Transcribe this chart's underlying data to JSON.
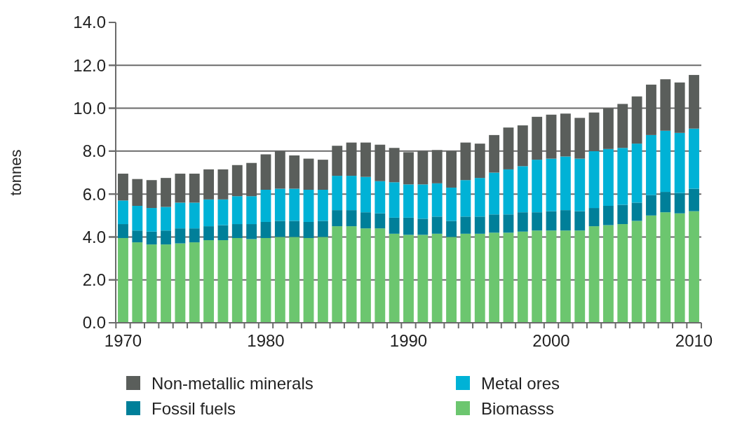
{
  "chart_data": {
    "type": "bar",
    "stacked": true,
    "ylabel": "tonnes",
    "categories": [
      "1970",
      null,
      null,
      null,
      null,
      null,
      null,
      null,
      null,
      null,
      "1980",
      null,
      null,
      null,
      null,
      null,
      null,
      null,
      null,
      null,
      "1990",
      null,
      null,
      null,
      null,
      null,
      null,
      null,
      null,
      null,
      "2000",
      null,
      null,
      null,
      null,
      null,
      null,
      null,
      null,
      null,
      "2010"
    ],
    "series": [
      {
        "name": "Biomasss",
        "color": "#6cc66f",
        "values": [
          3.95,
          3.75,
          3.65,
          3.65,
          3.7,
          3.75,
          3.85,
          3.85,
          3.95,
          3.9,
          3.95,
          4.0,
          4.0,
          3.95,
          4.0,
          4.5,
          4.5,
          4.4,
          4.4,
          4.15,
          4.1,
          4.1,
          4.15,
          4.0,
          4.15,
          4.15,
          4.2,
          4.2,
          4.25,
          4.3,
          4.3,
          4.3,
          4.3,
          4.5,
          4.55,
          4.6,
          4.75,
          5.0,
          5.15,
          5.1,
          5.2
        ]
      },
      {
        "name": "Fossil fuels",
        "color": "#007f99",
        "values": [
          0.65,
          0.55,
          0.6,
          0.65,
          0.7,
          0.65,
          0.65,
          0.7,
          0.65,
          0.7,
          0.75,
          0.75,
          0.75,
          0.75,
          0.75,
          0.75,
          0.75,
          0.75,
          0.7,
          0.75,
          0.8,
          0.75,
          0.8,
          0.75,
          0.8,
          0.8,
          0.85,
          0.85,
          0.9,
          0.85,
          0.9,
          0.95,
          0.9,
          0.85,
          0.9,
          0.9,
          0.85,
          0.95,
          0.95,
          0.95,
          1.05
        ]
      },
      {
        "name": "Metal ores",
        "color": "#00b2d6",
        "values": [
          1.1,
          1.15,
          1.1,
          1.1,
          1.2,
          1.2,
          1.25,
          1.2,
          1.3,
          1.3,
          1.5,
          1.5,
          1.5,
          1.5,
          1.45,
          1.6,
          1.6,
          1.65,
          1.5,
          1.65,
          1.55,
          1.6,
          1.55,
          1.55,
          1.7,
          1.8,
          1.95,
          2.1,
          2.15,
          2.45,
          2.45,
          2.5,
          2.45,
          2.65,
          2.65,
          2.65,
          2.75,
          2.8,
          2.85,
          2.8,
          2.8
        ]
      },
      {
        "name": "Non-metallic minerals",
        "color": "#5a5e5b",
        "values": [
          1.25,
          1.25,
          1.3,
          1.35,
          1.35,
          1.35,
          1.4,
          1.4,
          1.45,
          1.55,
          1.65,
          1.75,
          1.55,
          1.45,
          1.4,
          1.4,
          1.55,
          1.6,
          1.7,
          1.6,
          1.5,
          1.55,
          1.55,
          1.7,
          1.75,
          1.6,
          1.75,
          1.95,
          1.9,
          2.0,
          2.05,
          2.0,
          1.9,
          1.8,
          1.9,
          2.05,
          2.2,
          2.35,
          2.4,
          2.35,
          2.5
        ]
      }
    ],
    "ylim": [
      0,
      14
    ],
    "yticks": [
      {
        "value": 0,
        "label": "0.0"
      },
      {
        "value": 2,
        "label": "2.0"
      },
      {
        "value": 4,
        "label": "4.0"
      },
      {
        "value": 6,
        "label": "6.0"
      },
      {
        "value": 8,
        "label": "8.0"
      },
      {
        "value": 10,
        "label": "10.0"
      },
      {
        "value": 12,
        "label": "12.0"
      },
      {
        "value": 14,
        "label": "14.0"
      }
    ],
    "grid": "y",
    "legend": "bottom"
  }
}
